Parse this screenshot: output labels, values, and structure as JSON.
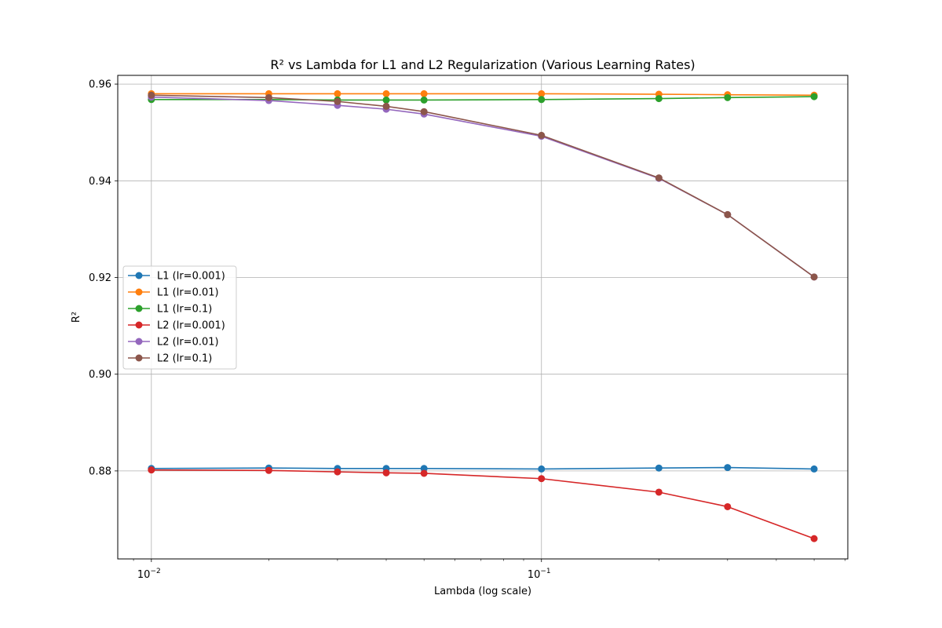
{
  "chart_data": {
    "type": "line",
    "title": "R² vs Lambda for L1 and L2 Regularization (Various Learning Rates)",
    "xlabel": "Lambda (log scale)",
    "ylabel": "R²",
    "xscale": "log",
    "xlim": [
      0.0082,
      0.61
    ],
    "ylim": [
      0.8618,
      0.9618
    ],
    "x": [
      0.01,
      0.02,
      0.03,
      0.04,
      0.05,
      0.1,
      0.2,
      0.3,
      0.5
    ],
    "xticks": [
      {
        "value": 0.01,
        "base": "10",
        "exp": "−2"
      },
      {
        "value": 0.1,
        "base": "10",
        "exp": "−1"
      }
    ],
    "yticks": [
      {
        "value": 0.88,
        "label": "0.88"
      },
      {
        "value": 0.9,
        "label": "0.90"
      },
      {
        "value": 0.92,
        "label": "0.92"
      },
      {
        "value": 0.94,
        "label": "0.94"
      },
      {
        "value": 0.96,
        "label": "0.96"
      }
    ],
    "grid": true,
    "legend_position": "center-left",
    "series": [
      {
        "name": "L1 (lr=0.001)",
        "color": "#1f77b4",
        "values": [
          0.8805,
          0.8806,
          0.8805,
          0.8805,
          0.8805,
          0.8804,
          0.8806,
          0.8807,
          0.8804
        ]
      },
      {
        "name": "L1 (lr=0.01)",
        "color": "#ff7f0e",
        "values": [
          0.958,
          0.958,
          0.958,
          0.958,
          0.958,
          0.958,
          0.9579,
          0.9578,
          0.9577
        ]
      },
      {
        "name": "L1 (lr=0.1)",
        "color": "#2ca02c",
        "values": [
          0.9568,
          0.9568,
          0.9567,
          0.9567,
          0.9567,
          0.9568,
          0.957,
          0.9572,
          0.9574
        ]
      },
      {
        "name": "L2 (lr=0.001)",
        "color": "#d62728",
        "values": [
          0.8802,
          0.8801,
          0.8798,
          0.8796,
          0.8795,
          0.8784,
          0.8756,
          0.8726,
          0.866
        ]
      },
      {
        "name": "L2 (lr=0.01)",
        "color": "#9467bd",
        "values": [
          0.9573,
          0.9566,
          0.9556,
          0.9548,
          0.9538,
          0.9492,
          0.9405,
          0.933,
          0.9201
        ]
      },
      {
        "name": "L2 (lr=0.1)",
        "color": "#8c564b",
        "values": [
          0.9577,
          0.9572,
          0.9564,
          0.9554,
          0.9543,
          0.9494,
          0.9406,
          0.933,
          0.9201
        ]
      }
    ]
  }
}
